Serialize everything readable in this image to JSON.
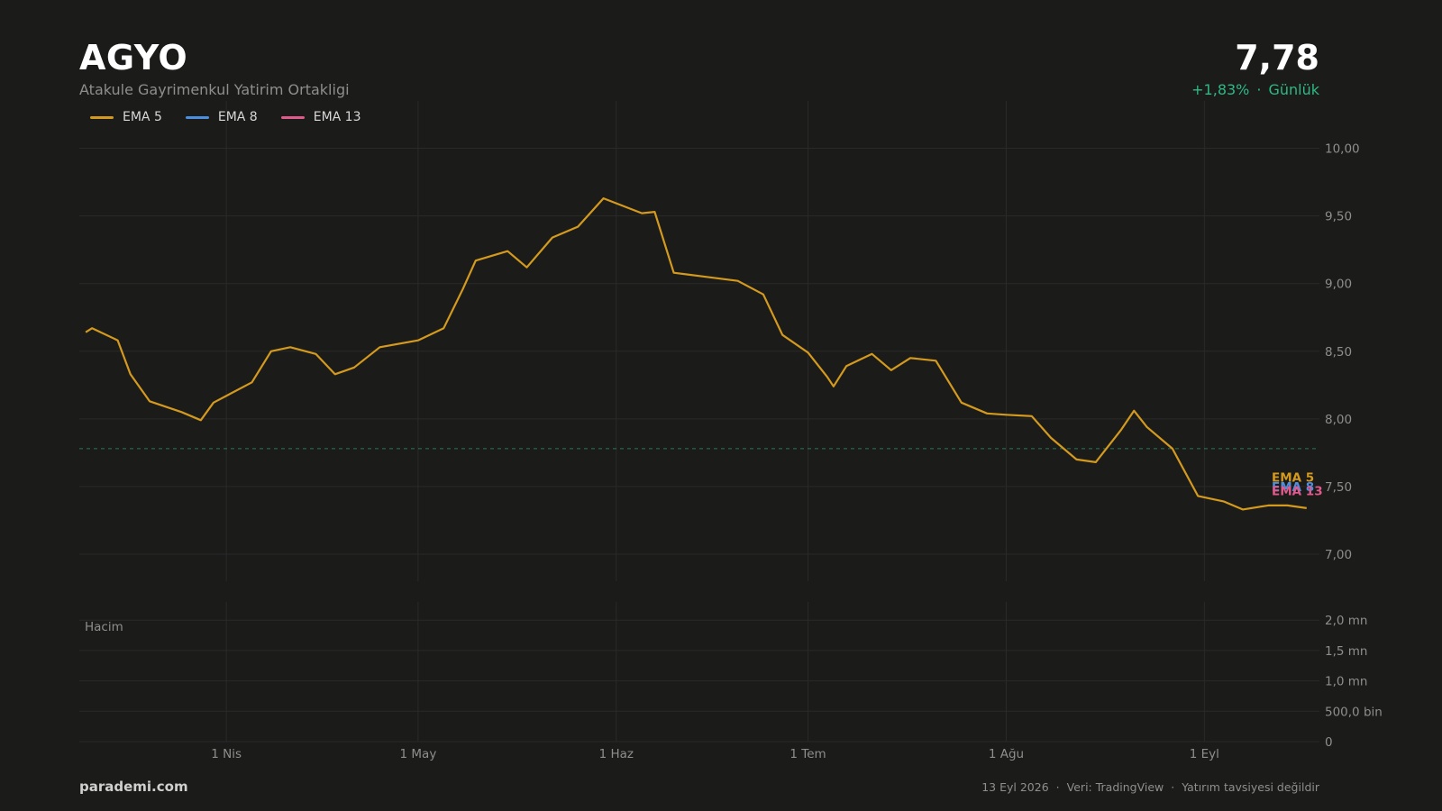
{
  "header": {
    "ticker": "AGYO",
    "company": "Atakule Gayrimenkul Yatirim Ortakligi",
    "price": "7,78",
    "change": "+1,83%",
    "separator": "·",
    "period": "Günlük"
  },
  "footer": {
    "brand": "parademi.com",
    "date": "13 Eyl 2026",
    "source": "Veri: TradingView",
    "disclaimer": "Yatırım tavsiyesi değildir"
  },
  "colors": {
    "up": "#2fb985",
    "down": "#e0574f",
    "ema5": "#d49a1e",
    "ema8": "#4a8fe0",
    "ema13": "#e05a8c",
    "grid": "#2a2a29",
    "axis_text": "#8e8e8c"
  },
  "chart_data": {
    "type": "candlestick",
    "title": "AGYO",
    "last_price": 7.78,
    "price_ylim": [
      6.8,
      10.35
    ],
    "price_ticks": [
      7.0,
      7.5,
      8.0,
      8.5,
      9.0,
      9.5,
      10.0
    ],
    "price_tick_labels": [
      "7,00",
      "7,50",
      "8,00",
      "8,50",
      "9,00",
      "9,50",
      "10,00"
    ],
    "volume_label": "Hacim",
    "volume_ylim": [
      0,
      2300000
    ],
    "volume_ticks": [
      0,
      500000,
      1000000,
      1500000,
      2000000
    ],
    "volume_tick_labels": [
      "0",
      "500,0 bin",
      "1,0 mn",
      "1,5 mn",
      "2,0 mn"
    ],
    "x_ticks": [
      {
        "date": "2026-04-01",
        "label": "1 Nis"
      },
      {
        "date": "2026-05-01",
        "label": "1 May"
      },
      {
        "date": "2026-06-01",
        "label": "1 Haz"
      },
      {
        "date": "2026-07-01",
        "label": "1 Tem"
      },
      {
        "date": "2026-08-01",
        "label": "1 Ağu"
      },
      {
        "date": "2026-09-01",
        "label": "1 Eyl"
      }
    ],
    "x_range": [
      "2026-03-09",
      "2026-09-19"
    ],
    "series": [
      {
        "name": "EMA 5",
        "color": "#d49a1e",
        "last": 7.57,
        "values": [
          [
            "2026-03-10",
            8.64
          ],
          [
            "2026-03-11",
            8.67
          ],
          [
            "2026-03-15",
            8.58
          ],
          [
            "2026-03-17",
            8.33
          ],
          [
            "2026-03-20",
            8.13
          ],
          [
            "2026-03-25",
            8.05
          ],
          [
            "2026-03-28",
            7.99
          ],
          [
            "2026-03-30",
            8.12
          ],
          [
            "2026-04-05",
            8.27
          ],
          [
            "2026-04-08",
            8.5
          ],
          [
            "2026-04-11",
            8.53
          ],
          [
            "2026-04-15",
            8.48
          ],
          [
            "2026-04-18",
            8.33
          ],
          [
            "2026-04-21",
            8.38
          ],
          [
            "2026-04-25",
            8.53
          ],
          [
            "2026-05-01",
            8.58
          ],
          [
            "2026-05-05",
            8.67
          ],
          [
            "2026-05-08",
            8.96
          ],
          [
            "2026-05-10",
            9.17
          ],
          [
            "2026-05-15",
            9.24
          ],
          [
            "2026-05-18",
            9.12
          ],
          [
            "2026-05-22",
            9.34
          ],
          [
            "2026-05-26",
            9.42
          ],
          [
            "2026-05-30",
            9.63
          ],
          [
            "2026-06-05",
            9.52
          ],
          [
            "2026-06-07",
            9.53
          ],
          [
            "2026-06-10",
            9.08
          ],
          [
            "2026-06-15",
            9.05
          ],
          [
            "2026-06-20",
            9.02
          ],
          [
            "2026-06-24",
            8.92
          ],
          [
            "2026-06-27",
            8.62
          ],
          [
            "2026-07-01",
            8.49
          ],
          [
            "2026-07-04",
            8.31
          ],
          [
            "2026-07-05",
            8.24
          ],
          [
            "2026-07-07",
            8.39
          ],
          [
            "2026-07-11",
            8.48
          ],
          [
            "2026-07-14",
            8.36
          ],
          [
            "2026-07-17",
            8.45
          ],
          [
            "2026-07-21",
            8.43
          ],
          [
            "2026-07-25",
            8.12
          ],
          [
            "2026-07-29",
            8.04
          ],
          [
            "2026-08-01",
            8.03
          ],
          [
            "2026-08-05",
            8.02
          ],
          [
            "2026-08-08",
            7.86
          ],
          [
            "2026-08-12",
            7.7
          ],
          [
            "2026-08-15",
            7.68
          ],
          [
            "2026-08-19",
            7.92
          ],
          [
            "2026-08-21",
            8.06
          ],
          [
            "2026-08-23",
            7.94
          ],
          [
            "2026-08-27",
            7.78
          ],
          [
            "2026-08-31",
            7.43
          ],
          [
            "2026-09-04",
            7.39
          ],
          [
            "2026-09-07",
            7.33
          ],
          [
            "2026-09-11",
            7.36
          ],
          [
            "2026-09-14",
            7.36
          ],
          [
            "2026-09-17",
            7.34
          ]
        ]
      },
      {
        "name": "EMA 8",
        "color": "#4a8fe0",
        "last": 7.5,
        "values": []
      },
      {
        "name": "EMA 13",
        "color": "#e05a8c",
        "last": 7.47,
        "values": []
      }
    ]
  }
}
